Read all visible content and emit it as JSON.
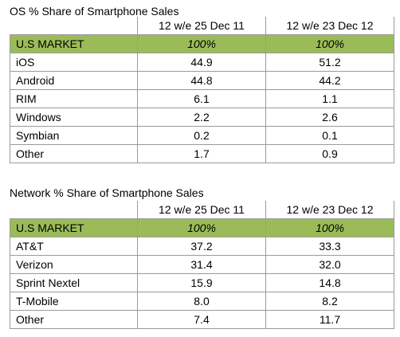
{
  "os_table": {
    "title": "OS % Share of Smartphone Sales",
    "columns": [
      "",
      "12 w/e 25 Dec 11",
      "12 w/e 23 Dec 12"
    ],
    "market_row": {
      "label": "U.S MARKET",
      "values": [
        "100%",
        "100%"
      ]
    },
    "rows": [
      {
        "label": "iOS",
        "values": [
          "44.9",
          "51.2"
        ]
      },
      {
        "label": "Android",
        "values": [
          "44.8",
          "44.2"
        ]
      },
      {
        "label": "RIM",
        "values": [
          "6.1",
          "1.1"
        ]
      },
      {
        "label": "Windows",
        "values": [
          "2.2",
          "2.6"
        ]
      },
      {
        "label": "Symbian",
        "values": [
          "0.2",
          "0.1"
        ]
      },
      {
        "label": "Other",
        "values": [
          "1.7",
          "0.9"
        ]
      }
    ]
  },
  "network_table": {
    "title": "Network % Share of Smartphone Sales",
    "columns": [
      "",
      "12 w/e 25 Dec 11",
      "12 w/e 23 Dec 12"
    ],
    "market_row": {
      "label": "U.S MARKET",
      "values": [
        "100%",
        "100%"
      ]
    },
    "rows": [
      {
        "label": "AT&T",
        "values": [
          "37.2",
          "33.3"
        ]
      },
      {
        "label": "Verizon",
        "values": [
          "31.4",
          "32.0"
        ]
      },
      {
        "label": "Sprint Nextel",
        "values": [
          "15.9",
          "14.8"
        ]
      },
      {
        "label": "T-Mobile",
        "values": [
          "8.0",
          "8.2"
        ]
      },
      {
        "label": "Other",
        "values": [
          "7.4",
          "11.7"
        ]
      }
    ]
  },
  "colors": {
    "market_row_background": "#9bbb59",
    "grid_line": "#9a9a9a"
  }
}
